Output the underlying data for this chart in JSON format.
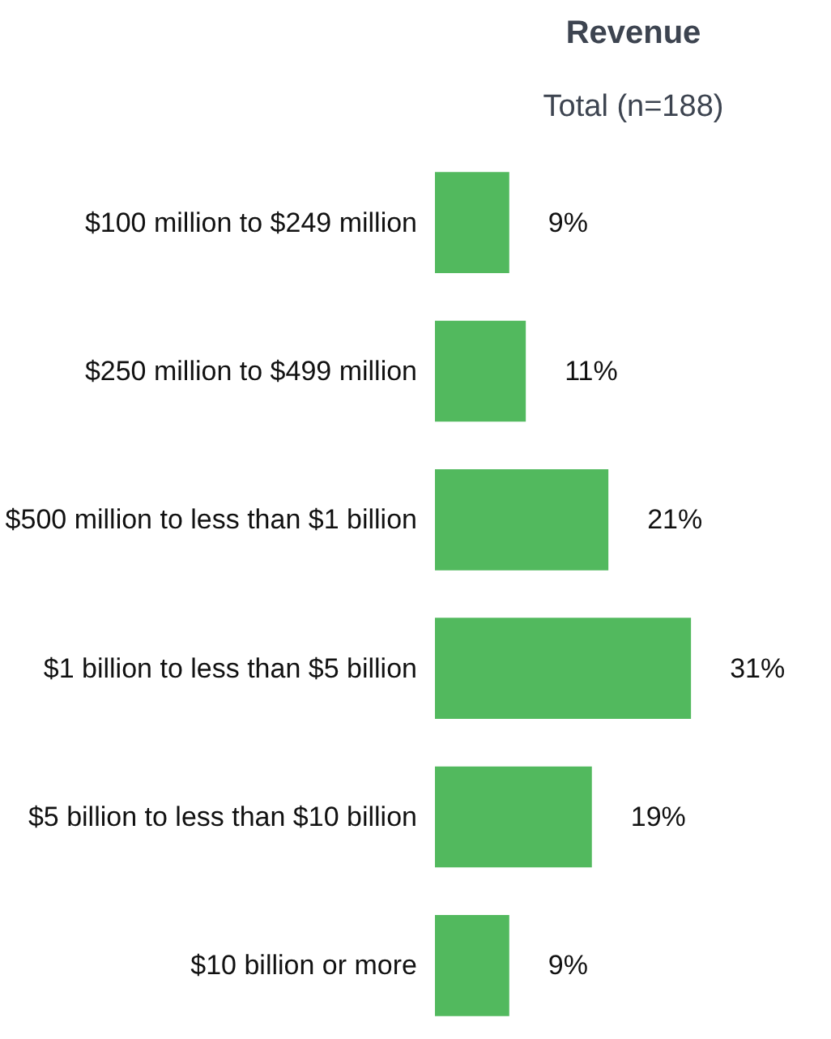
{
  "chart_data": {
    "type": "bar",
    "orientation": "horizontal",
    "title": "Revenue",
    "subtitle": "Total (n=188)",
    "categories": [
      "$100 million to $249 million",
      "$250 million to $499 million",
      "$500 million to less than $1 billion",
      "$1 billion to less than $5 billion",
      "$5 billion to less than $10 billion",
      "$10 billion or more"
    ],
    "values": [
      9,
      11,
      21,
      31,
      19,
      9
    ],
    "value_labels": [
      "9%",
      "11%",
      "21%",
      "31%",
      "19%",
      "9%"
    ],
    "color": "#52b95e",
    "grid": false
  }
}
